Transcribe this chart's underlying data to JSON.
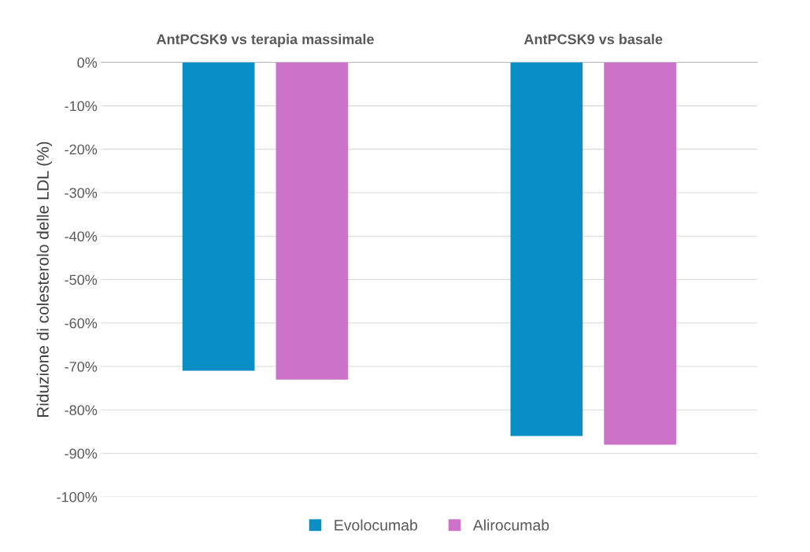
{
  "chart_data": {
    "type": "bar",
    "categories": [
      "AntPCSK9 vs terapia massimale",
      "AntPCSK9 vs basale"
    ],
    "ylabel": "Riduzione di colesterolo delle LDL (%)",
    "series": [
      {
        "name": "Evolocumab",
        "color": "#0a8fc4",
        "values": [
          -71,
          -86
        ]
      },
      {
        "name": "Alirocumab",
        "color": "#cc72c8",
        "values": [
          -73,
          -88
        ]
      }
    ],
    "ylim": [
      -100,
      0
    ],
    "yticks": [
      {
        "value": -100,
        "label": "-100%"
      },
      {
        "value": -90,
        "label": "-90%"
      },
      {
        "value": -80,
        "label": "-80%"
      },
      {
        "value": -70,
        "label": "-70%"
      },
      {
        "value": -60,
        "label": "-60%"
      },
      {
        "value": -50,
        "label": "-50%"
      },
      {
        "value": -40,
        "label": "-40%"
      },
      {
        "value": -30,
        "label": "-30%"
      },
      {
        "value": -20,
        "label": "-20%"
      },
      {
        "value": -10,
        "label": "-10%"
      },
      {
        "value": 0,
        "label": "0%"
      }
    ],
    "grid": "y",
    "legend": "bottom"
  }
}
